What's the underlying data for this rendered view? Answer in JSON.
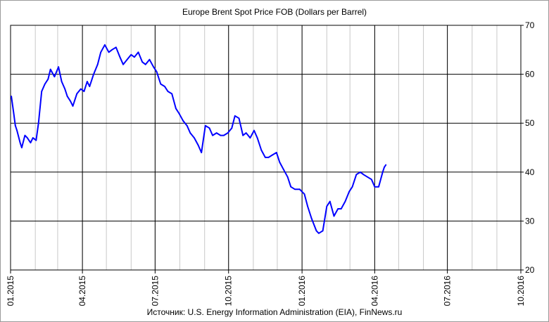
{
  "chart_data": {
    "type": "line",
    "title": "Europe  Brent Spot Price FOB (Dollars per Barrel)",
    "source": "Источник:  U.S. Energy Information  Administration (EIA), FinNews.ru",
    "xlabel": "",
    "ylabel": "",
    "y_axis_side": "right",
    "ylim": [
      20,
      70
    ],
    "y_ticks": [
      20,
      30,
      40,
      50,
      60,
      70
    ],
    "x_range": [
      "2015-01-01",
      "2016-10-01"
    ],
    "x_ticks": [
      {
        "date": "2015-01-01",
        "label": "01.2015"
      },
      {
        "date": "2015-04-01",
        "label": "04.2015"
      },
      {
        "date": "2015-07-01",
        "label": "07.2015"
      },
      {
        "date": "2015-10-01",
        "label": "10.2015"
      },
      {
        "date": "2016-01-01",
        "label": "01.2016"
      },
      {
        "date": "2016-04-01",
        "label": "04.2016"
      },
      {
        "date": "2016-07-01",
        "label": "07.2016"
      },
      {
        "date": "2016-10-01",
        "label": "10.2016"
      }
    ],
    "grid": true,
    "line_color": "#0000ff",
    "series": [
      {
        "x": [
          "2015-01-02",
          "2015-01-05",
          "2015-01-07",
          "2015-01-09",
          "2015-01-13",
          "2015-01-15",
          "2015-01-19",
          "2015-01-22",
          "2015-01-26",
          "2015-01-29",
          "2015-02-02",
          "2015-02-05",
          "2015-02-09",
          "2015-02-13",
          "2015-02-17",
          "2015-02-20",
          "2015-02-25",
          "2015-03-02",
          "2015-03-06",
          "2015-03-10",
          "2015-03-13",
          "2015-03-17",
          "2015-03-20",
          "2015-03-25",
          "2015-03-30",
          "2015-04-03",
          "2015-04-07",
          "2015-04-10",
          "2015-04-15",
          "2015-04-20",
          "2015-04-24",
          "2015-04-29",
          "2015-05-04",
          "2015-05-08",
          "2015-05-13",
          "2015-05-18",
          "2015-05-22",
          "2015-05-27",
          "2015-06-01",
          "2015-06-05",
          "2015-06-10",
          "2015-06-15",
          "2015-06-19",
          "2015-06-24",
          "2015-06-29",
          "2015-07-03",
          "2015-07-08",
          "2015-07-13",
          "2015-07-17",
          "2015-07-22",
          "2015-07-27",
          "2015-07-31",
          "2015-08-05",
          "2015-08-10",
          "2015-08-14",
          "2015-08-19",
          "2015-08-24",
          "2015-08-28",
          "2015-09-02",
          "2015-09-07",
          "2015-09-11",
          "2015-09-16",
          "2015-09-21",
          "2015-09-25",
          "2015-09-30",
          "2015-10-05",
          "2015-10-09",
          "2015-10-14",
          "2015-10-19",
          "2015-10-23",
          "2015-10-28",
          "2015-11-02",
          "2015-11-06",
          "2015-11-11",
          "2015-11-16",
          "2015-11-20",
          "2015-11-25",
          "2015-11-30",
          "2015-12-04",
          "2015-12-09",
          "2015-12-14",
          "2015-12-18",
          "2015-12-23",
          "2015-12-29",
          "2016-01-04",
          "2016-01-08",
          "2016-01-13",
          "2016-01-19",
          "2016-01-22",
          "2016-01-27",
          "2016-02-01",
          "2016-02-05",
          "2016-02-10",
          "2016-02-15",
          "2016-02-19",
          "2016-02-24",
          "2016-02-29",
          "2016-03-04",
          "2016-03-09",
          "2016-03-14",
          "2016-03-18",
          "2016-03-23",
          "2016-03-28",
          "2016-04-01",
          "2016-04-06",
          "2016-04-11",
          "2016-04-13",
          "2016-04-15"
        ],
        "values": [
          55.5,
          52.0,
          49.5,
          48.5,
          46.0,
          45.0,
          47.5,
          47.0,
          46.0,
          47.0,
          46.5,
          50.0,
          56.5,
          58.0,
          59.0,
          61.0,
          59.5,
          61.5,
          58.5,
          57.0,
          55.5,
          54.5,
          53.5,
          56.0,
          57.0,
          56.5,
          58.5,
          57.5,
          60.0,
          62.0,
          64.5,
          66.0,
          64.5,
          65.0,
          65.5,
          63.5,
          62.0,
          63.0,
          64.0,
          63.5,
          64.5,
          62.5,
          62.0,
          63.0,
          61.5,
          60.5,
          58.0,
          57.5,
          56.5,
          56.0,
          53.0,
          52.0,
          50.5,
          49.5,
          48.0,
          47.0,
          45.5,
          44.0,
          49.5,
          49.0,
          47.5,
          48.0,
          47.5,
          47.5,
          48.0,
          49.0,
          51.5,
          51.0,
          47.5,
          48.0,
          47.0,
          48.5,
          47.0,
          44.5,
          43.0,
          43.0,
          43.5,
          44.0,
          42.0,
          40.5,
          39.0,
          37.0,
          36.5,
          36.5,
          35.5,
          33.0,
          30.5,
          28.0,
          27.5,
          28.0,
          33.0,
          34.0,
          31.0,
          32.5,
          32.5,
          34.0,
          36.0,
          37.0,
          39.5,
          40.0,
          39.5,
          39.0,
          38.5,
          37.0,
          37.0,
          40.0,
          41.0,
          41.5
        ]
      }
    ]
  }
}
